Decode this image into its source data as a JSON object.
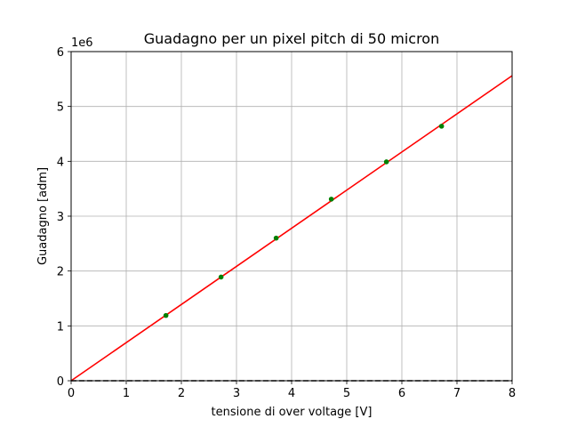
{
  "chart_data": {
    "type": "scatter",
    "title": "Guadagno per un pixel pitch di 50 micron",
    "xlabel": "tensione di over voltage [V]",
    "ylabel": "Guadagno [adm]",
    "y_offset_label": "1e6",
    "xlim": [
      0,
      8
    ],
    "ylim": [
      0,
      6
    ],
    "y_scale_factor": 1000000,
    "grid": true,
    "x_ticks": [
      "0",
      "1",
      "2",
      "3",
      "4",
      "5",
      "6",
      "7",
      "8"
    ],
    "y_ticks": [
      "0",
      "1",
      "2",
      "3",
      "4",
      "5",
      "6"
    ],
    "series": [
      {
        "kind": "points",
        "color": "#008000",
        "x": [
          1.72,
          2.72,
          3.72,
          4.72,
          5.72,
          6.72
        ],
        "y": [
          1.19,
          1.89,
          2.6,
          3.31,
          3.99,
          4.64
        ]
      },
      {
        "kind": "fit-line",
        "color": "#ff0000",
        "x": [
          0,
          8
        ],
        "y": [
          0.0,
          5.56
        ]
      },
      {
        "kind": "baseline",
        "color": "#000000",
        "dashed": true,
        "x": [
          0,
          8
        ],
        "y": [
          0.0,
          0.0
        ]
      }
    ]
  }
}
